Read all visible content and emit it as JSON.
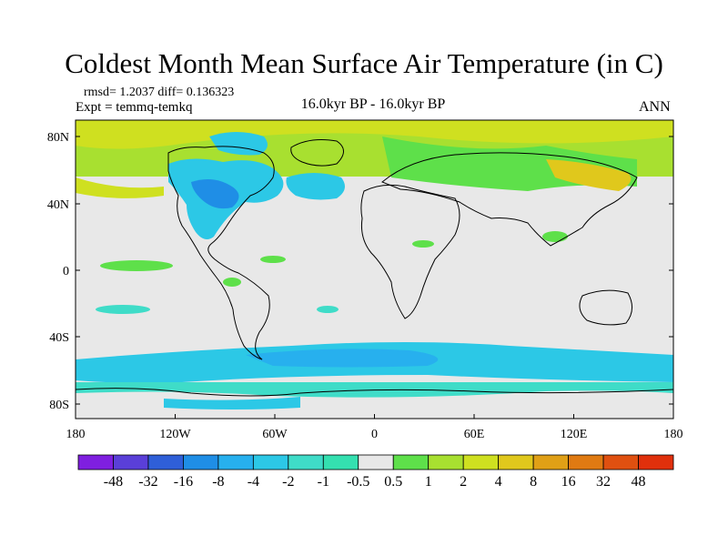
{
  "title": "Coldest Month Mean Surface Air Temperature (in C)",
  "stats": "rmsd= 1.2037 diff= 0.136323",
  "experiment": "Expt = temmq-temkq",
  "period": "16.0kyr BP - 16.0kyr BP",
  "season": "ANN",
  "lat_labels": [
    "80N",
    "40N",
    "0",
    "40S",
    "80S"
  ],
  "lon_labels": [
    "180",
    "120W",
    "60W",
    "0",
    "60E",
    "120E",
    "180"
  ],
  "colorbar": {
    "labels": [
      "-48",
      "-32",
      "-16",
      "-8",
      "-4",
      "-2",
      "-1",
      "-0.5",
      "0.5",
      "1",
      "2",
      "4",
      "8",
      "16",
      "32",
      "48"
    ],
    "colors": [
      "#7f1fe0",
      "#5a3fd8",
      "#2f5fd8",
      "#1f8ee6",
      "#27b0ee",
      "#2cc8e6",
      "#3fdcc8",
      "#34e0b0",
      "#e8e8e8",
      "#5ee04a",
      "#a8e030",
      "#cfe020",
      "#e0c81c",
      "#e0a016",
      "#e07a12",
      "#e05010",
      "#e0300c"
    ]
  }
}
